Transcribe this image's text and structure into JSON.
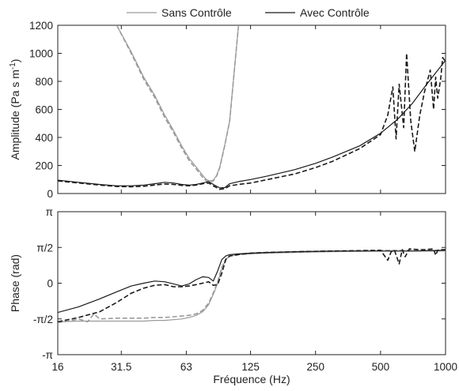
{
  "chart_data": {
    "type": "line",
    "legend": {
      "placement": "top-center",
      "entries": [
        "Sans Contrôle",
        "Avec Contrôle"
      ]
    },
    "xlabel": "Fréquence (Hz)",
    "x_scale": "log",
    "x_ticks": [
      16,
      31.5,
      63,
      125,
      250,
      500,
      1000
    ],
    "x_tick_labels": [
      "16",
      "31.5",
      "63",
      "125",
      "250",
      "500",
      "1000"
    ],
    "colors": {
      "sans": "#9a9a9a",
      "avec": "#1a1a1a"
    },
    "panels": [
      {
        "name": "amplitude",
        "ylabel": "Amplitude (Pa s m⁻¹)",
        "ylabel_main": "Amplitude (Pa s m",
        "ylabel_sup": "-1",
        "ylabel_end": ")",
        "ylim": [
          0,
          1200
        ],
        "yticks": [
          0,
          200,
          400,
          600,
          800,
          1000,
          1200
        ],
        "ytick_labels": [
          "0",
          "200",
          "400",
          "600",
          "800",
          "1000",
          "1200"
        ],
        "series": [
          {
            "name": "Sans Contrôle",
            "style": "solid",
            "color": "#9a9a9a",
            "x": [
              30,
              35,
              40,
              45,
              50,
              55,
              60,
              65,
              70,
              75,
              78,
              81,
              84,
              87,
              90,
              95,
              100,
              110
            ],
            "y": [
              1200,
              1010,
              830,
              700,
              560,
              450,
              340,
              250,
              190,
              130,
              100,
              90,
              95,
              130,
              190,
              350,
              520,
              1200
            ]
          },
          {
            "name": "Sans Contrôle",
            "style": "dashed",
            "color": "#9a9a9a",
            "x": [
              30,
              35,
              40,
              45,
              50,
              55,
              60,
              65,
              70,
              75,
              78,
              81,
              84,
              87,
              90,
              95,
              100,
              110
            ],
            "y": [
              1200,
              1000,
              815,
              685,
              545,
              435,
              325,
              235,
              175,
              115,
              90,
              82,
              90,
              125,
              185,
              345,
              515,
              1200
            ]
          },
          {
            "name": "Avec Contrôle",
            "style": "solid",
            "color": "#1a1a1a",
            "x": [
              16,
              20,
              25,
              30,
              35,
              40,
              45,
              50,
              55,
              60,
              65,
              70,
              75,
              80,
              85,
              90,
              95,
              100,
              110,
              125,
              150,
              200,
              250,
              300,
              400,
              500,
              600,
              700,
              800,
              900,
              1000
            ],
            "y": [
              95,
              80,
              65,
              55,
              55,
              60,
              70,
              80,
              75,
              65,
              60,
              65,
              75,
              85,
              60,
              40,
              42,
              70,
              85,
              100,
              125,
              170,
              215,
              260,
              340,
              430,
              530,
              640,
              760,
              860,
              950
            ]
          },
          {
            "name": "Avec Contrôle",
            "style": "dashed",
            "color": "#1a1a1a",
            "x": [
              16,
              20,
              25,
              30,
              35,
              40,
              45,
              50,
              55,
              60,
              65,
              70,
              75,
              80,
              85,
              90,
              95,
              100,
              110,
              125,
              150,
              200,
              250,
              300,
              400,
              500,
              540,
              570,
              590,
              610,
              640,
              660,
              690,
              720,
              760,
              800,
              850,
              880,
              900,
              920,
              950,
              970,
              1000
            ],
            "y": [
              90,
              75,
              60,
              50,
              48,
              52,
              60,
              68,
              65,
              58,
              55,
              60,
              70,
              75,
              50,
              30,
              35,
              55,
              65,
              75,
              100,
              140,
              185,
              230,
              320,
              420,
              560,
              760,
              390,
              780,
              470,
              1000,
              520,
              300,
              560,
              730,
              880,
              600,
              830,
              680,
              820,
              970,
              940
            ]
          }
        ]
      },
      {
        "name": "phase",
        "ylabel": "Phase (rad)",
        "ylim_units": "multiples of pi",
        "ylim": [
          -1,
          1
        ],
        "yticks": [
          -1,
          -0.5,
          0,
          0.5,
          1
        ],
        "ytick_labels": [
          "-π",
          "-π/2",
          "0",
          "π/2",
          "π"
        ],
        "series": [
          {
            "name": "Sans Contrôle",
            "style": "solid",
            "color": "#9a9a9a",
            "x": [
              16,
              20,
              25,
              30,
              35,
              40,
              45,
              50,
              55,
              60,
              65,
              70,
              75,
              80,
              85,
              88,
              92,
              96,
              100,
              110,
              125,
              150,
              200,
              300,
              500,
              700,
              1000
            ],
            "y": [
              -0.54,
              -0.53,
              -0.53,
              -0.53,
              -0.53,
              -0.53,
              -0.52,
              -0.52,
              -0.51,
              -0.5,
              -0.48,
              -0.45,
              -0.4,
              -0.3,
              -0.12,
              0.0,
              0.2,
              0.33,
              0.38,
              0.4,
              0.41,
              0.42,
              0.43,
              0.44,
              0.45,
              0.45,
              0.45
            ]
          },
          {
            "name": "Sans Contrôle",
            "style": "dashed",
            "color": "#9a9a9a",
            "x": [
              16,
              18,
              20,
              22,
              23.5,
              25,
              30,
              35,
              40,
              45,
              50,
              55,
              60,
              65,
              70,
              75,
              80,
              85,
              88,
              92,
              96,
              100,
              110,
              125,
              150,
              200,
              300,
              500,
              700,
              1000
            ],
            "y": [
              -0.55,
              -0.53,
              -0.5,
              -0.54,
              -0.43,
              -0.5,
              -0.49,
              -0.49,
              -0.49,
              -0.48,
              -0.48,
              -0.47,
              -0.46,
              -0.45,
              -0.43,
              -0.38,
              -0.28,
              -0.1,
              0.02,
              0.22,
              0.34,
              0.38,
              0.4,
              0.42,
              0.43,
              0.44,
              0.45,
              0.46,
              0.46,
              0.46
            ]
          },
          {
            "name": "Avec Contrôle",
            "style": "solid",
            "color": "#1a1a1a",
            "x": [
              16,
              20,
              25,
              30,
              35,
              40,
              45,
              50,
              55,
              60,
              65,
              70,
              75,
              80,
              84,
              88,
              92,
              96,
              100,
              110,
              125,
              150,
              200,
              300,
              500,
              700,
              1000
            ],
            "y": [
              -0.41,
              -0.33,
              -0.22,
              -0.12,
              -0.04,
              0.0,
              0.03,
              0.02,
              -0.01,
              -0.04,
              -0.01,
              0.05,
              0.09,
              0.08,
              0.03,
              0.17,
              0.33,
              0.38,
              0.4,
              0.41,
              0.42,
              0.43,
              0.44,
              0.45,
              0.45,
              0.45,
              0.46
            ]
          },
          {
            "name": "Avec Contrôle",
            "style": "dashed",
            "color": "#1a1a1a",
            "x": [
              16,
              20,
              25,
              30,
              35,
              40,
              45,
              50,
              55,
              60,
              65,
              70,
              75,
              80,
              84,
              88,
              92,
              96,
              100,
              110,
              125,
              150,
              200,
              300,
              500,
              540,
              560,
              580,
              610,
              630,
              650,
              680,
              750,
              800,
              880,
              900,
              920,
              950,
              1000
            ],
            "y": [
              -0.54,
              -0.48,
              -0.4,
              -0.27,
              -0.14,
              -0.07,
              -0.03,
              -0.02,
              -0.05,
              -0.05,
              -0.04,
              -0.02,
              0.0,
              0.02,
              -0.03,
              -0.02,
              0.14,
              0.33,
              0.38,
              0.4,
              0.42,
              0.43,
              0.44,
              0.45,
              0.46,
              0.32,
              0.44,
              0.46,
              0.27,
              0.47,
              0.37,
              0.48,
              0.47,
              0.47,
              0.48,
              0.39,
              0.46,
              0.47,
              0.47
            ]
          }
        ]
      }
    ]
  }
}
